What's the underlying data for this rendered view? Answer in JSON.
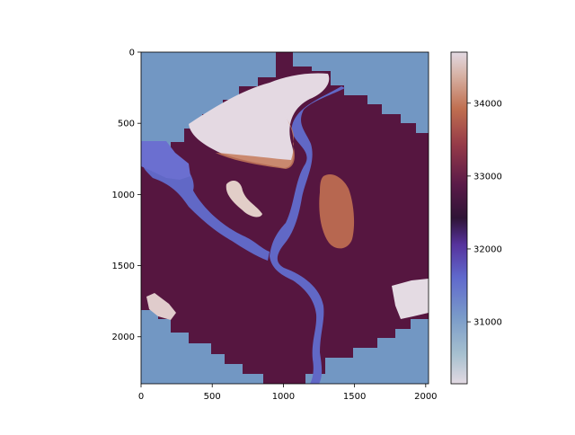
{
  "chart_data": {
    "type": "heatmap",
    "title": "",
    "xlabel": "",
    "ylabel": "",
    "xlim": [
      0,
      2020
    ],
    "ylim": [
      2330,
      0
    ],
    "x_ticks": [
      0,
      500,
      1000,
      1500,
      2000
    ],
    "y_ticks": [
      0,
      500,
      1000,
      1500,
      2000
    ],
    "colormap": "twilight",
    "colorbar": {
      "range": [
        30150,
        34700
      ],
      "ticks": [
        31000,
        32000,
        33000,
        34000
      ]
    },
    "regions": [
      {
        "name": "background",
        "value": 30800
      },
      {
        "name": "land",
        "value": 32900
      },
      {
        "name": "river",
        "value": 31300
      },
      {
        "name": "highland-north",
        "value": 34600
      },
      {
        "name": "ridge-east",
        "value": 33700
      },
      {
        "name": "highland-southeast",
        "value": 34600
      }
    ]
  }
}
